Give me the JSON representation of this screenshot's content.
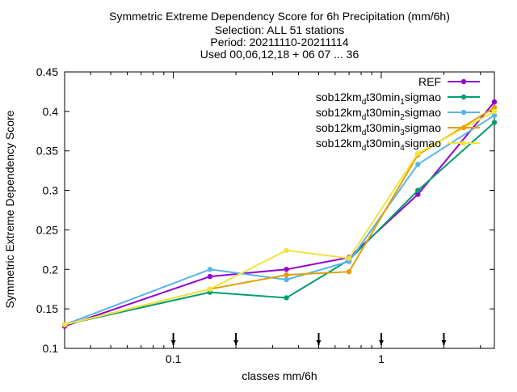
{
  "chart_data": {
    "type": "line",
    "title_lines": [
      "Symmetric Extreme Dependency Score  for 6h Precipitation (mm/6h)",
      "Selection: ALL      51 stations",
      "Period: 20211110-20211114",
      "Used 00,06,12,18 + 06 07 ... 36"
    ],
    "xlabel": "classes mm/6h",
    "ylabel": "Symmetric Extreme Dependency Score",
    "x_scale": "log",
    "xlim": [
      0.03,
      3.5
    ],
    "ylim": [
      0.1,
      0.45
    ],
    "x_ticks": [
      {
        "value": 0.1,
        "label": "0.1"
      },
      {
        "value": 1,
        "label": "1"
      }
    ],
    "y_ticks": [
      {
        "value": 0.1,
        "label": "0.1"
      },
      {
        "value": 0.15,
        "label": "0.15"
      },
      {
        "value": 0.2,
        "label": "0.2"
      },
      {
        "value": 0.25,
        "label": "0.25"
      },
      {
        "value": 0.3,
        "label": "0.3"
      },
      {
        "value": 0.35,
        "label": "0.35"
      },
      {
        "value": 0.4,
        "label": "0.4"
      },
      {
        "value": 0.45,
        "label": "0.45"
      }
    ],
    "class_markers": [
      0.1,
      0.2,
      0.5,
      1,
      2
    ],
    "x": [
      0.03,
      0.15,
      0.35,
      0.7,
      1.5,
      3.5
    ],
    "legend_position": "top-right",
    "series": [
      {
        "name_parts": [
          [
            "REF",
            "n"
          ]
        ],
        "color": "#9400d3",
        "values": [
          0.128,
          0.191,
          0.2,
          0.215,
          0.295,
          0.412
        ]
      },
      {
        "name_parts": [
          [
            "sob12km",
            "n"
          ],
          [
            "d",
            "sub"
          ],
          [
            "t30min",
            "n"
          ],
          [
            "1",
            "sub"
          ],
          [
            "sigmao",
            "n"
          ]
        ],
        "color": "#009e73",
        "values": [
          0.13,
          0.171,
          0.164,
          0.212,
          0.3,
          0.386
        ]
      },
      {
        "name_parts": [
          [
            "sob12km",
            "n"
          ],
          [
            "d",
            "sub"
          ],
          [
            "t30min",
            "n"
          ],
          [
            "2",
            "sub"
          ],
          [
            "sigmao",
            "n"
          ]
        ],
        "color": "#56b4e9",
        "values": [
          0.13,
          0.2,
          0.187,
          0.21,
          0.333,
          0.395
        ]
      },
      {
        "name_parts": [
          [
            "sob12km",
            "n"
          ],
          [
            "d",
            "sub"
          ],
          [
            "t30min",
            "n"
          ],
          [
            "3",
            "sub"
          ],
          [
            "sigmao",
            "n"
          ]
        ],
        "color": "#e69f00",
        "values": [
          0.13,
          0.175,
          0.193,
          0.197,
          0.345,
          0.405
        ]
      },
      {
        "name_parts": [
          [
            "sob12km",
            "n"
          ],
          [
            "d",
            "sub"
          ],
          [
            "t30min",
            "n"
          ],
          [
            "4",
            "sub"
          ],
          [
            "sigmao",
            "n"
          ]
        ],
        "color": "#f0e442",
        "values": [
          0.13,
          0.175,
          0.224,
          0.214,
          0.347,
          0.4
        ]
      }
    ]
  }
}
